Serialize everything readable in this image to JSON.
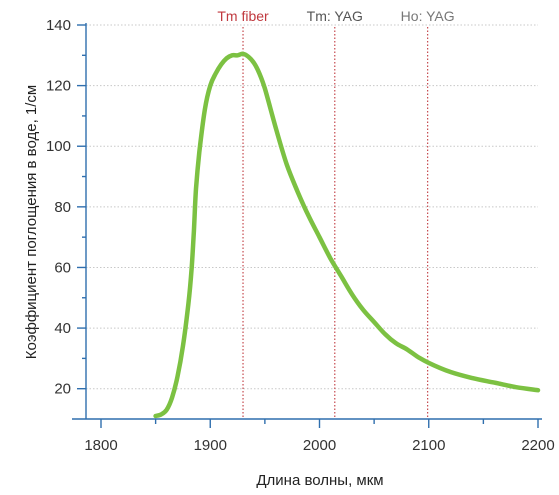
{
  "chart_data": {
    "type": "line",
    "title": "",
    "xlabel": "Длина волны, мкм",
    "ylabel": "Коэффициент поглощения в воде, 1/см",
    "xlim": [
      1800,
      2200
    ],
    "ylim": [
      10,
      140
    ],
    "x_ticks": [
      1800,
      1900,
      2000,
      2100,
      2200
    ],
    "x_tick_labels": [
      "1800",
      "1900",
      "2000",
      "2100",
      "2200"
    ],
    "y_ticks": [
      20,
      40,
      60,
      80,
      100,
      120,
      140
    ],
    "y_tick_labels": [
      "20",
      "40",
      "60",
      "80",
      "100",
      "120",
      "140"
    ],
    "grid": "horizontal dotted",
    "legend": "none",
    "series": [
      {
        "color": "#7cc142",
        "x": [
          1850,
          1855,
          1860,
          1865,
          1870,
          1875,
          1880,
          1883,
          1885,
          1887,
          1890,
          1895,
          1900,
          1905,
          1910,
          1915,
          1920,
          1925,
          1930,
          1935,
          1940,
          1945,
          1950,
          1960,
          1970,
          1980,
          1990,
          2000,
          2010,
          2020,
          2030,
          2040,
          2050,
          2060,
          2070,
          2080,
          2090,
          2100,
          2120,
          2140,
          2160,
          2180,
          2200
        ],
        "y": [
          11,
          11.5,
          13,
          17,
          24,
          34,
          48,
          60,
          72,
          86,
          98,
          112,
          120,
          124,
          127,
          129,
          130,
          130,
          130.5,
          129.5,
          127.5,
          124,
          119,
          106,
          94,
          85,
          77,
          70,
          63,
          57,
          51,
          46,
          42,
          38,
          35,
          33,
          30.5,
          28.5,
          25.5,
          23.5,
          22,
          20.5,
          19.5
        ]
      }
    ],
    "markers": [
      {
        "x": 1930,
        "label": "Tm fiber",
        "color": "#c0393f"
      },
      {
        "x": 2014,
        "label": "Tm: YAG",
        "color": "#555555"
      },
      {
        "x": 2099,
        "label": "Ho: YAG",
        "color": "#777777"
      }
    ],
    "colors": {
      "axis": "#2f6fae",
      "grid": "#c8c8c8",
      "marker_line": "#c0393f"
    }
  }
}
